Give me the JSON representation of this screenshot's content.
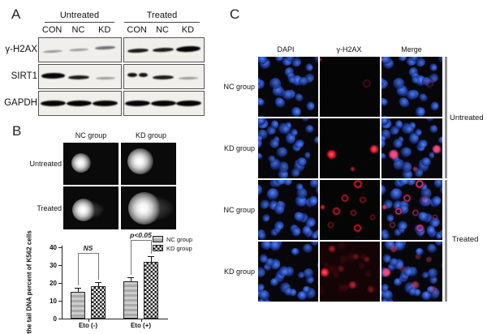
{
  "colors": {
    "background": "#ffffff",
    "text": "#1a1a1a",
    "dapi_blue": "#2d55c0",
    "h2ax_red": "#d81a2c",
    "merge_magenta": "#d94b9a",
    "nc_bar_fill": "#bdbdbd",
    "kd_bar_pattern": "checkerboard"
  },
  "panel_a": {
    "letter": "A",
    "condition_groups": [
      "Untreated",
      "Treated"
    ],
    "lane_labels": [
      "CON",
      "NC",
      "KD"
    ],
    "rows": [
      {
        "label": "γ-H2AX",
        "untreated": [
          "faint",
          "faint",
          "medium"
        ],
        "treated": [
          "strong",
          "strong",
          "verystrong"
        ]
      },
      {
        "label": "SIRT1",
        "untreated": [
          "verystrong",
          "strong",
          "faint"
        ],
        "treated": [
          "doublet",
          "strong",
          "faint"
        ]
      },
      {
        "label": "GAPDH",
        "untreated": [
          "verystrong",
          "verystrong",
          "verystrong"
        ],
        "treated": [
          "verystrong",
          "verystrong",
          "verystrong"
        ]
      }
    ]
  },
  "panel_b": {
    "letter": "B",
    "comet_columns": [
      "NC group",
      "KD group"
    ],
    "comet_rows": [
      "Untreated",
      "Treated"
    ]
  },
  "chart_data": {
    "type": "bar",
    "categories": [
      "Eto (-)",
      "Eto (+)"
    ],
    "series": [
      {
        "name": "NC group",
        "values": [
          15,
          21
        ],
        "errors": [
          2.5,
          2
        ]
      },
      {
        "name": "KD group",
        "values": [
          18,
          32
        ],
        "errors": [
          2.5,
          3
        ]
      }
    ],
    "ylabel": "the tail DNA percent of K562 cells",
    "ylim": [
      0,
      40
    ],
    "yticks": [
      0,
      10,
      20,
      30,
      40
    ],
    "annotations": [
      {
        "text": "NS",
        "category": "Eto (-)"
      },
      {
        "text": "p<0.05",
        "category": "Eto (+)"
      }
    ],
    "legend_position": "top-right",
    "grid": false
  },
  "panel_c": {
    "letter": "C",
    "columns": [
      "DAPI",
      "γ-H2AX",
      "Merge"
    ],
    "row_labels": [
      "NC group",
      "KD group",
      "NC group",
      "KD group"
    ],
    "condition_labels": [
      "Untreated",
      "Treated"
    ],
    "red_signal_by_row": [
      "minimal",
      "few bright foci",
      "many ring-shaped foci",
      "diffuse faint with bright focus"
    ]
  }
}
